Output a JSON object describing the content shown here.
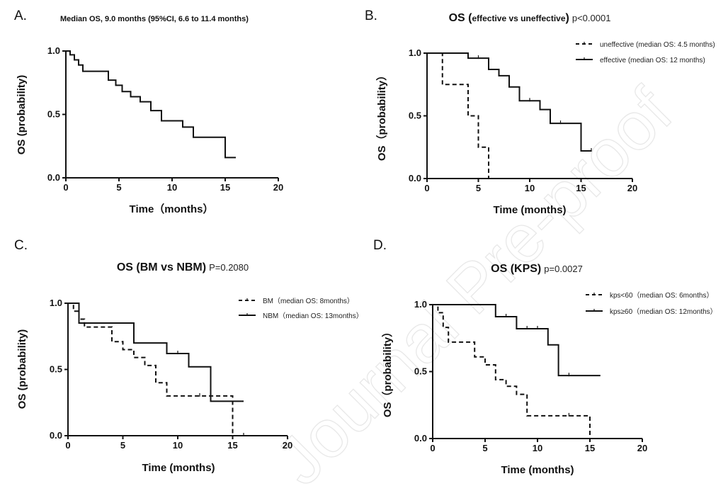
{
  "watermark": "Journal Pre-proof",
  "chart_data": [
    {
      "type": "line",
      "panel": "A.",
      "title": "Median OS, 9.0 months (95%CI, 6.6 to 11.4 months)",
      "p_value": "",
      "xlabel": "Time（months）",
      "ylabel": "OS (probability)",
      "xlim": [
        0,
        20
      ],
      "ylim": [
        0,
        1.05
      ],
      "xticks": [
        "0",
        "5",
        "10",
        "15",
        "20"
      ],
      "yticks": [
        "0.0",
        "0.5",
        "1.0"
      ],
      "grid": false,
      "legend_position": "",
      "series": [
        {
          "name": "",
          "dash": false,
          "x": [
            0,
            0.4,
            0.8,
            1.2,
            1.6,
            4,
            4.7,
            5.3,
            6.1,
            7,
            8,
            9,
            11,
            12,
            15,
            16
          ],
          "y": [
            1.0,
            0.97,
            0.93,
            0.89,
            0.84,
            0.77,
            0.73,
            0.68,
            0.64,
            0.6,
            0.53,
            0.45,
            0.4,
            0.32,
            0.16,
            0.16
          ],
          "censor_x": []
        }
      ]
    },
    {
      "type": "line",
      "panel": "B.",
      "title": "OS (",
      "title_small": "effective vs uneffective",
      "title_end": ")",
      "p_value": "p<0.0001",
      "xlabel": "Time (months)",
      "ylabel": "OS（probability）",
      "xlim": [
        0,
        20
      ],
      "ylim": [
        0,
        1.05
      ],
      "xticks": [
        "0",
        "5",
        "10",
        "15",
        "20"
      ],
      "yticks": [
        "0.0",
        "0.5",
        "1.0"
      ],
      "grid": false,
      "legend_position": "top-right",
      "series": [
        {
          "name": "uneffective (median OS: 4.5 months)",
          "dash": true,
          "x": [
            0,
            1.5,
            4,
            5,
            6,
            6
          ],
          "y": [
            1.0,
            0.75,
            0.5,
            0.25,
            0,
            0
          ],
          "censor_x": []
        },
        {
          "name": "effective (median OS: 12 months)",
          "dash": false,
          "x": [
            0,
            4,
            6,
            7,
            8,
            9,
            11,
            12,
            15,
            16
          ],
          "y": [
            1.0,
            0.96,
            0.87,
            0.82,
            0.73,
            0.62,
            0.55,
            0.44,
            0.22,
            0.22
          ],
          "censor_x": [
            5,
            10,
            13,
            16
          ]
        }
      ]
    },
    {
      "type": "line",
      "panel": "C.",
      "title": "OS (BM vs NBM)",
      "p_value": "P=0.2080",
      "xlabel": "Time (months)",
      "ylabel": "OS (probability)",
      "xlim": [
        0,
        20
      ],
      "ylim": [
        0,
        1.05
      ],
      "xticks": [
        "0",
        "5",
        "10",
        "15",
        "20"
      ],
      "yticks": [
        "0.0",
        "0.5",
        "1.0"
      ],
      "grid": false,
      "legend_position": "top-right",
      "series": [
        {
          "name": "BM（median OS: 8months）",
          "dash": true,
          "x": [
            0,
            0.5,
            1,
            1.5,
            4,
            5,
            6,
            7,
            8,
            9,
            15,
            15
          ],
          "y": [
            1.0,
            0.94,
            0.88,
            0.82,
            0.71,
            0.65,
            0.59,
            0.53,
            0.4,
            0.3,
            0,
            0
          ],
          "censor_x": [
            12,
            13,
            16
          ]
        },
        {
          "name": "NBM（median OS: 13months）",
          "dash": false,
          "x": [
            0,
            1,
            6,
            9,
            11,
            13,
            16
          ],
          "y": [
            1.0,
            0.85,
            0.7,
            0.62,
            0.52,
            0.26,
            0.26
          ],
          "censor_x": [
            10
          ]
        }
      ]
    },
    {
      "type": "line",
      "panel": "D.",
      "title": "OS (KPS)",
      "p_value": "p=0.0027",
      "xlabel": "Time (months)",
      "ylabel": "OS（probability）",
      "xlim": [
        0,
        20
      ],
      "ylim": [
        0,
        1.05
      ],
      "xticks": [
        "0",
        "5",
        "10",
        "15",
        "20"
      ],
      "yticks": [
        "0.0",
        "0.5",
        "1.0"
      ],
      "grid": false,
      "legend_position": "top-right",
      "series": [
        {
          "name": "kps<60（median OS: 6months）",
          "dash": true,
          "x": [
            0,
            0.5,
            1,
            1.5,
            4,
            5,
            6,
            7,
            8,
            9,
            15,
            15
          ],
          "y": [
            1.0,
            0.94,
            0.83,
            0.72,
            0.61,
            0.55,
            0.44,
            0.39,
            0.33,
            0.17,
            0,
            0
          ],
          "censor_x": [
            13
          ]
        },
        {
          "name": "kps≥60（median OS: 12months）",
          "dash": false,
          "x": [
            0,
            6,
            8,
            11,
            12,
            16
          ],
          "y": [
            1.0,
            0.91,
            0.82,
            0.7,
            0.47,
            0.47
          ],
          "censor_x": [
            7,
            9,
            10,
            13
          ]
        }
      ]
    }
  ]
}
